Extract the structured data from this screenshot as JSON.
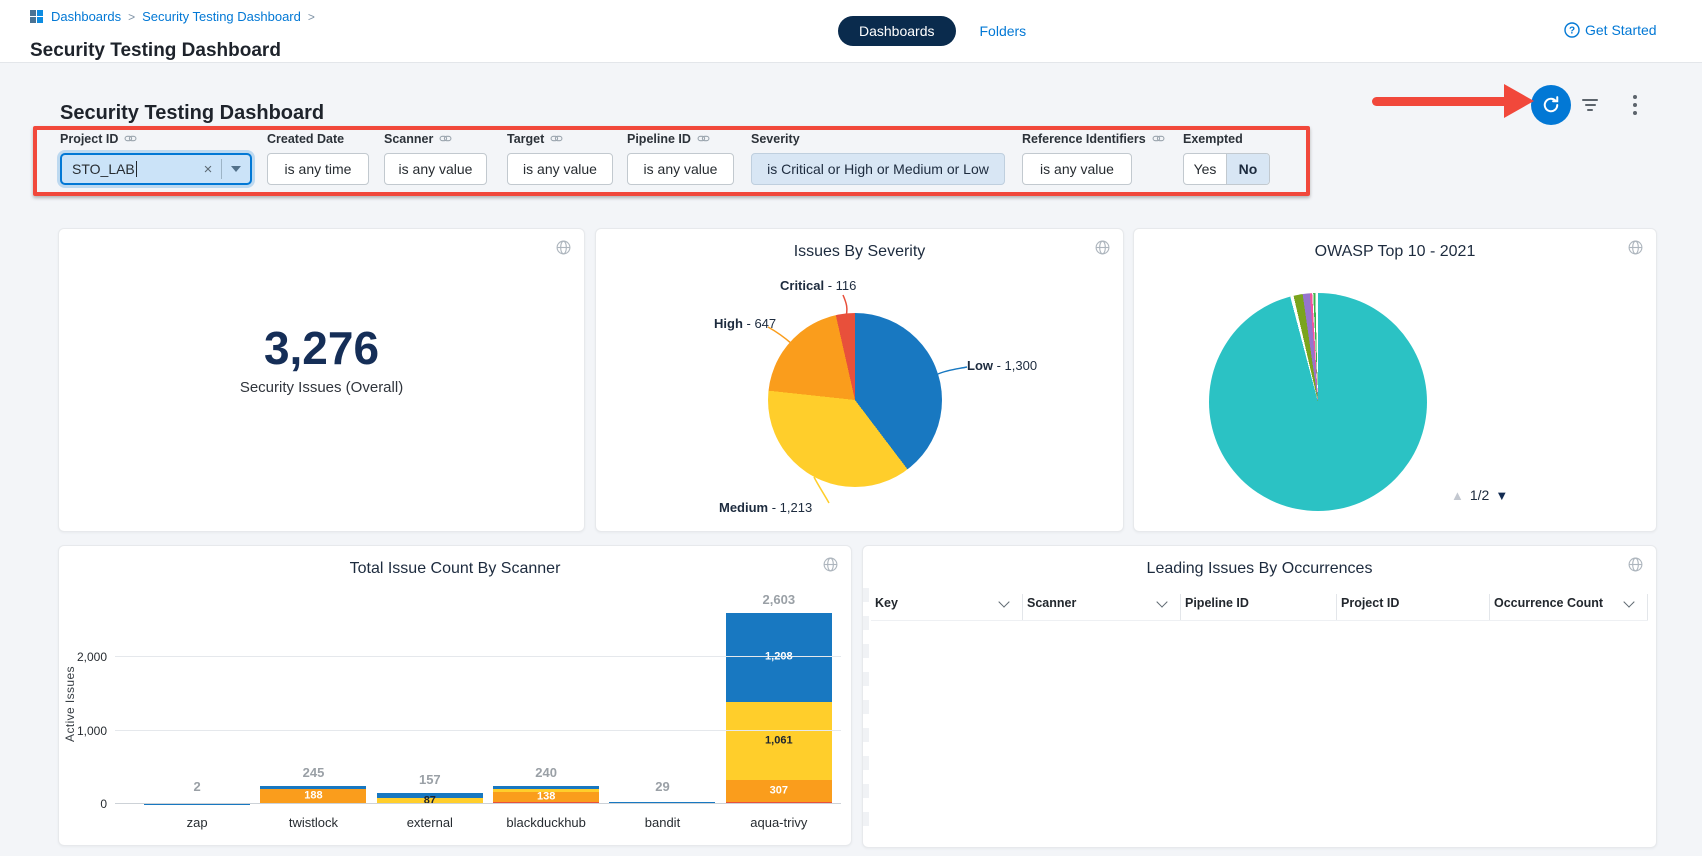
{
  "colors": {
    "accent_blue": "#0278D5",
    "navy": "#0A2B4D",
    "annotation_red": "#F1483B",
    "critical": "#E8503B",
    "high": "#FA9D1C",
    "medium": "#FFCE2B",
    "low": "#1878C1",
    "teal": "#2BC2C4"
  },
  "icons": {
    "page_up": "▲",
    "page_down": "▼",
    "clear": "×",
    "question": "?"
  },
  "header": {
    "breadcrumb": {
      "items": [
        "Dashboards",
        "Security Testing Dashboard"
      ],
      "separator": ">"
    },
    "title": "Security Testing Dashboard",
    "tabs": [
      {
        "label": "Dashboards",
        "active": true
      },
      {
        "label": "Folders",
        "active": false
      }
    ],
    "get_started": "Get Started"
  },
  "dashboard": {
    "heading": "Security Testing Dashboard"
  },
  "filters": {
    "items": [
      {
        "label": "Project ID",
        "linked": true,
        "control": "combobox",
        "value": "STO_LAB"
      },
      {
        "label": "Created Date",
        "linked": false,
        "control": "button",
        "value": "is any time"
      },
      {
        "label": "Scanner",
        "linked": true,
        "control": "button",
        "value": "is any value"
      },
      {
        "label": "Target",
        "linked": true,
        "control": "button",
        "value": "is any value"
      },
      {
        "label": "Pipeline ID",
        "linked": true,
        "control": "button",
        "value": "is any value"
      },
      {
        "label": "Severity",
        "linked": false,
        "control": "chip",
        "value": "is Critical or High or Medium or Low"
      },
      {
        "label": "Reference Identifiers",
        "linked": true,
        "control": "button",
        "value": "is any value"
      },
      {
        "label": "Exempted",
        "linked": false,
        "control": "toggle",
        "options": [
          "Yes",
          "No"
        ],
        "selected": "No"
      }
    ]
  },
  "cards": {
    "overall": {
      "value": "3,276",
      "label": "Security Issues (Overall)"
    },
    "table": {
      "title": "Leading Issues By Occurrences",
      "columns": [
        {
          "label": "Key",
          "sortable": true
        },
        {
          "label": "Scanner",
          "sortable": true
        },
        {
          "label": "Pipeline ID",
          "sortable": false
        },
        {
          "label": "Project ID",
          "sortable": false
        },
        {
          "label": "Occurrence Count",
          "sortable": true
        }
      ],
      "rows": []
    }
  },
  "chart_data": [
    {
      "id": "issues_by_severity",
      "type": "pie",
      "title": "Issues By Severity",
      "total": 3276,
      "start_angle": "top",
      "direction": "clockwise",
      "legend": "callout-labels",
      "slices": [
        {
          "name": "Low",
          "value": 1300,
          "label": "1,300",
          "color": "#1878C1"
        },
        {
          "name": "Medium",
          "value": 1213,
          "label": "1,213",
          "color": "#FFCE2B"
        },
        {
          "name": "High",
          "value": 647,
          "label": "647",
          "color": "#FA9D1C"
        },
        {
          "name": "Critical",
          "value": 116,
          "label": "116",
          "color": "#E8503B"
        }
      ]
    },
    {
      "id": "owasp_top_10_2021",
      "type": "pie",
      "title": "OWASP Top 10 - 2021",
      "values_unit": "percent-estimated-from-pixels",
      "pages": "1/2",
      "slices": [
        {
          "name": "slice-teal",
          "value": 95.9,
          "color": "#2BC2C4"
        },
        {
          "name": "gap",
          "value": 0.5,
          "color": "#FFFFFF"
        },
        {
          "name": "slice-olive-green",
          "value": 1.35,
          "color": "#7AA41C"
        },
        {
          "name": "slice-purple",
          "value": 1.05,
          "color": "#9575CD"
        },
        {
          "name": "slice-pink",
          "value": 0.35,
          "color": "#F0559E"
        },
        {
          "name": "gap-2",
          "value": 0.15,
          "color": "#FFFFFF"
        },
        {
          "name": "slice-green",
          "value": 0.3,
          "color": "#3BB54A"
        },
        {
          "name": "gap-3",
          "value": 0.4,
          "color": "#FFFFFF"
        }
      ]
    },
    {
      "id": "total_issue_count_by_scanner",
      "type": "bar",
      "stacked": true,
      "title": "Total Issue Count By Scanner",
      "ylabel": "Active Issues",
      "categories": [
        "zap",
        "twistlock",
        "external",
        "blackduckhub",
        "bandit",
        "aqua-trivy"
      ],
      "totals": [
        2,
        245,
        157,
        240,
        29,
        2603
      ],
      "total_labels": [
        "2",
        "245",
        "157",
        "240",
        "29",
        "2,603"
      ],
      "series": [
        {
          "name": "Critical",
          "color": "#E8503B",
          "values": [
            0,
            12,
            0,
            30,
            0,
            27
          ],
          "labels": [
            null,
            null,
            null,
            null,
            null,
            null
          ]
        },
        {
          "name": "High",
          "color": "#FA9D1C",
          "values": [
            0,
            188,
            0,
            138,
            0,
            307
          ],
          "labels": [
            null,
            "188",
            null,
            "138",
            null,
            "307"
          ]
        },
        {
          "name": "Medium",
          "color": "#FFCE2B",
          "values": [
            0,
            0,
            87,
            40,
            0,
            1061
          ],
          "labels": [
            null,
            null,
            "87",
            null,
            null,
            "1,061"
          ],
          "dark_labels": true
        },
        {
          "name": "Low",
          "color": "#1878C1",
          "values": [
            2,
            45,
            70,
            32,
            29,
            1208
          ],
          "labels": [
            null,
            null,
            null,
            null,
            null,
            "1,208"
          ]
        }
      ],
      "yticks": [
        0,
        1000,
        2000
      ],
      "ytick_labels": [
        "0",
        "1,000",
        "2,000"
      ],
      "ymax": 2700,
      "grid": true
    }
  ]
}
